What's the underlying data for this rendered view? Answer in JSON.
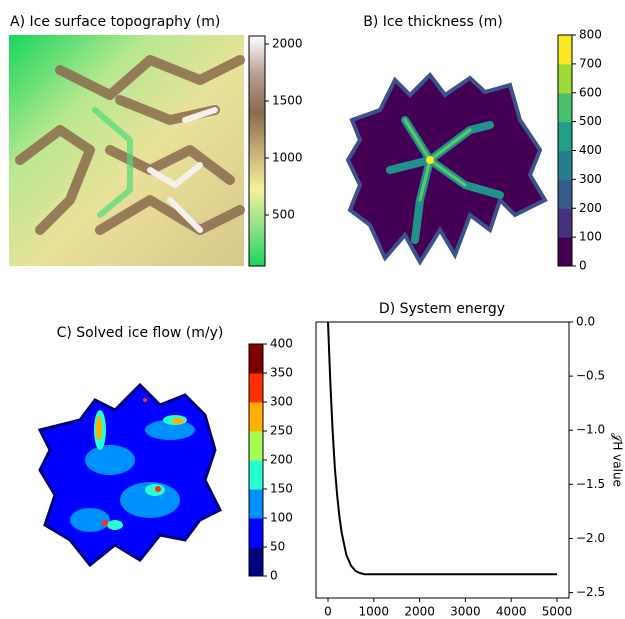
{
  "chart_data": [
    {
      "type": "heatmap",
      "title": "A) Ice surface topography (m)",
      "colorbar": {
        "lim": [
          53,
          2070
        ],
        "ticks": [
          500,
          1000,
          1500,
          2000
        ],
        "colors": [
          "#17d65c",
          "#8fe08a",
          "#f3f29a",
          "#c7ae78",
          "#8a6a4c",
          "#b89d94",
          "#ffffff"
        ],
        "continuous": true
      }
    },
    {
      "type": "heatmap",
      "title": "B) Ice thickness (m)",
      "colorbar": {
        "lim": [
          0,
          800
        ],
        "ticks": [
          0,
          100,
          200,
          300,
          400,
          500,
          600,
          700,
          800
        ],
        "colors": [
          "#440154",
          "#46327e",
          "#365c8d",
          "#277f8e",
          "#1fa187",
          "#4ac16d",
          "#a0da39",
          "#fde725"
        ],
        "continuous": false
      }
    },
    {
      "type": "heatmap",
      "title": "C) Solved ice flow  (m/y)",
      "colorbar": {
        "lim": [
          0,
          400
        ],
        "ticks": [
          0,
          50,
          100,
          150,
          200,
          250,
          300,
          350,
          400
        ],
        "colors": [
          "#000080",
          "#0000ff",
          "#0090ff",
          "#29ffce",
          "#a6ff50",
          "#ffb000",
          "#ff3000",
          "#800000"
        ],
        "continuous": false
      }
    },
    {
      "type": "line",
      "title": "D) System energy",
      "ylabel": "𝒥H value",
      "y_axis_side": "right",
      "x": [
        0,
        50,
        100,
        150,
        200,
        250,
        300,
        400,
        500,
        600,
        700,
        800,
        1000,
        2000,
        3000,
        4000,
        5000
      ],
      "series": [
        {
          "color": "#000000",
          "values": [
            0.0,
            -0.55,
            -1.0,
            -1.35,
            -1.6,
            -1.8,
            -1.95,
            -2.15,
            -2.25,
            -2.3,
            -2.32,
            -2.33,
            -2.33,
            -2.33,
            -2.33,
            -2.33,
            -2.33
          ]
        }
      ],
      "xlim": [
        -262,
        5262
      ],
      "xticks": [
        0,
        1000,
        2000,
        3000,
        4000,
        5000
      ],
      "ylim": [
        -2.55,
        0.0
      ],
      "yticks": [
        {
          "value": 0.0,
          "label": "0.0"
        },
        {
          "value": -0.5,
          "label": "−0.5"
        },
        {
          "value": -1.0,
          "label": "−1.0"
        },
        {
          "value": -1.5,
          "label": "−1.5"
        },
        {
          "value": -2.0,
          "label": "−2.0"
        },
        {
          "value": -2.5,
          "label": "−2.5"
        }
      ]
    }
  ]
}
